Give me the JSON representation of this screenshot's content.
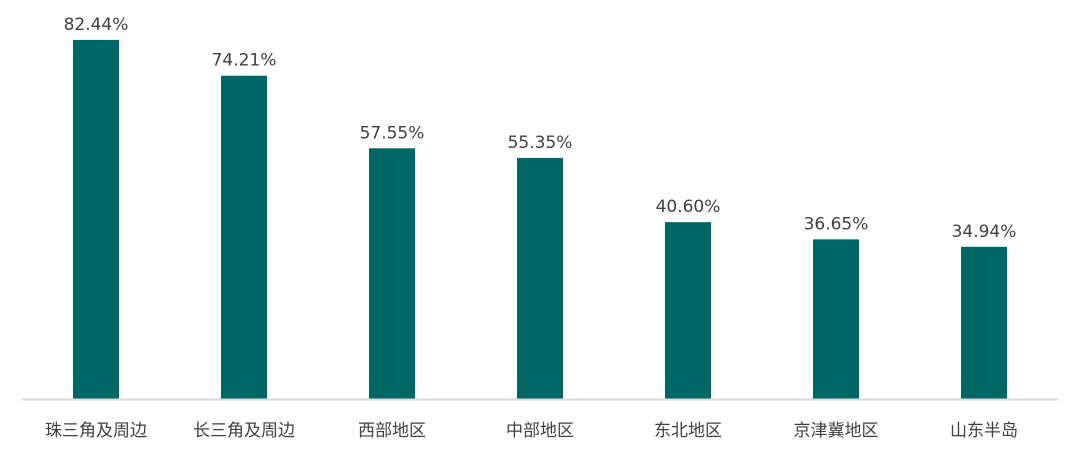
{
  "chart_data": {
    "type": "bar",
    "title": "",
    "xlabel": "",
    "ylabel": "",
    "categories": [
      "珠三角及周边",
      "长三角及周边",
      "西部地区",
      "中部地区",
      "东北地区",
      "京津冀地区",
      "山东半岛"
    ],
    "values": [
      82.44,
      74.21,
      57.55,
      55.35,
      40.6,
      36.65,
      34.94
    ],
    "value_labels": [
      "82.44%",
      "74.21%",
      "57.55%",
      "55.35%",
      "40.60%",
      "36.65%",
      "34.94%"
    ],
    "unit": "%",
    "ylim": [
      0,
      91.6
    ],
    "grid": false,
    "legend": "none",
    "colors": {
      "bar": "#006666",
      "axis": "#d9d9d9",
      "text": "#404040"
    }
  }
}
